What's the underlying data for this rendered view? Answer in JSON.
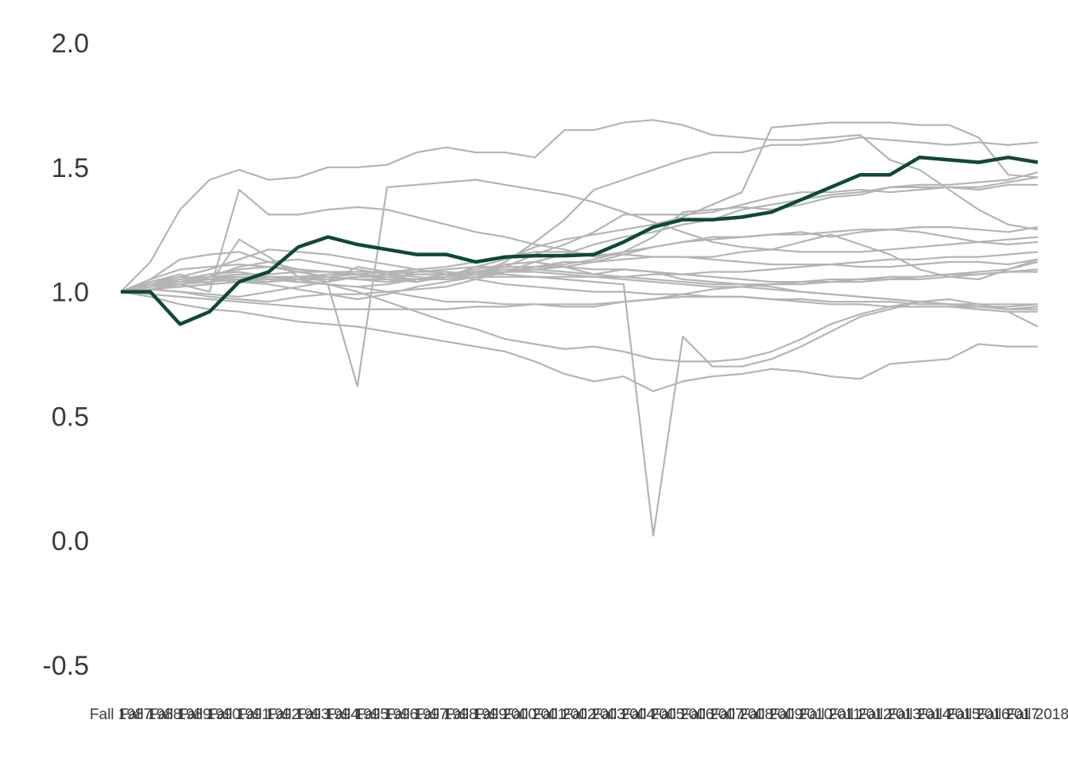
{
  "chart_data": {
    "type": "line",
    "title": "",
    "xlabel": "",
    "ylabel": "",
    "ylim": [
      -0.6,
      2.08
    ],
    "yticks": [
      "2.0",
      "1.5",
      "1.0",
      "0.5",
      "0.0",
      "-0.5"
    ],
    "ytick_values": [
      2.0,
      1.5,
      1.0,
      0.5,
      0.0,
      -0.5
    ],
    "grid": false,
    "legend": "none",
    "x": [
      "Fall 1987",
      "Fall 1988",
      "Fall 1989",
      "Fall 1990",
      "Fall 1991",
      "Fall 1992",
      "Fall 1993",
      "Fall 1994",
      "Fall 1995",
      "Fall 1996",
      "Fall 1997",
      "Fall 1998",
      "Fall 1999",
      "Fall 2000",
      "Fall 2001",
      "Fall 2002",
      "Fall 2003",
      "Fall 2004",
      "Fall 2005",
      "Fall 2006",
      "Fall 2007",
      "Fall 2008",
      "Fall 2009",
      "Fall 2010",
      "Fall 2011",
      "Fall 2012",
      "Fall 2013",
      "Fall 2014",
      "Fall 2015",
      "Fall 2016",
      "Fall 2017",
      "Fall 2018"
    ],
    "colors": {
      "background_series": "#b4b4b4",
      "highlight_series": "#0d4a33"
    },
    "highlight": {
      "values": [
        1.0,
        1.0,
        0.87,
        0.92,
        1.04,
        1.08,
        1.18,
        1.22,
        1.19,
        1.17,
        1.15,
        1.15,
        1.12,
        1.14,
        1.145,
        1.145,
        1.15,
        1.2,
        1.26,
        1.29,
        1.29,
        1.3,
        1.32,
        1.37,
        1.42,
        1.47,
        1.47,
        1.54,
        1.53,
        1.52,
        1.54,
        1.52
      ]
    },
    "series": [
      {
        "values": [
          1.0,
          1.12,
          1.33,
          1.45,
          1.49,
          1.45,
          1.46,
          1.5,
          1.5,
          1.51,
          1.56,
          1.58,
          1.56,
          1.56,
          1.54,
          1.65,
          1.65,
          1.68,
          1.69,
          1.67,
          1.63,
          1.62,
          1.61,
          1.61,
          1.62,
          1.63,
          1.53,
          1.49,
          1.41,
          1.33,
          1.27,
          1.25
        ]
      },
      {
        "values": [
          1.0,
          1.04,
          1.07,
          1.03,
          1.21,
          1.14,
          1.06,
          1.04,
          1.1,
          1.08,
          1.04,
          1.06,
          1.1,
          1.13,
          1.18,
          1.21,
          1.23,
          1.25,
          1.27,
          1.3,
          1.35,
          1.4,
          1.66,
          1.67,
          1.68,
          1.68,
          1.68,
          1.67,
          1.67,
          1.62,
          1.47,
          1.46
        ]
      },
      {
        "values": [
          1.0,
          1.02,
          1.03,
          1.0,
          1.41,
          1.31,
          1.31,
          1.33,
          1.34,
          1.33,
          1.3,
          1.27,
          1.24,
          1.22,
          1.19,
          1.17,
          1.14,
          1.16,
          1.22,
          1.32,
          1.33,
          1.34,
          1.33,
          1.35,
          1.38,
          1.39,
          1.42,
          1.43,
          1.43,
          1.44,
          1.45,
          1.48
        ]
      },
      {
        "values": [
          1.0,
          1.05,
          1.13,
          1.15,
          1.16,
          1.12,
          1.09,
          1.08,
          1.07,
          1.05,
          1.04,
          1.06,
          1.08,
          1.1,
          1.15,
          1.19,
          1.24,
          1.31,
          1.31,
          1.31,
          1.32,
          1.35,
          1.38,
          1.4,
          1.4,
          1.41,
          1.4,
          1.41,
          1.42,
          1.42,
          1.44,
          1.46
        ]
      },
      {
        "values": [
          1.0,
          1.02,
          1.04,
          1.06,
          1.1,
          1.12,
          1.13,
          1.11,
          1.09,
          1.07,
          1.06,
          1.05,
          1.07,
          1.12,
          1.2,
          1.29,
          1.41,
          1.45,
          1.49,
          1.53,
          1.56,
          1.56,
          1.59,
          1.59,
          1.6,
          1.62,
          1.61,
          1.6,
          1.59,
          1.6,
          1.59,
          1.6
        ]
      },
      {
        "values": [
          1.0,
          1.01,
          1.0,
          0.98,
          0.97,
          0.96,
          0.98,
          0.99,
          0.99,
          1.0,
          1.01,
          1.02,
          1.05,
          1.08,
          1.12,
          1.15,
          1.19,
          1.22,
          1.24,
          1.27,
          1.29,
          1.33,
          1.35,
          1.37,
          1.39,
          1.4,
          1.42,
          1.42,
          1.42,
          1.41,
          1.43,
          1.43
        ]
      },
      {
        "values": [
          1.0,
          1.03,
          1.05,
          1.06,
          1.07,
          1.07,
          1.08,
          1.08,
          1.07,
          1.06,
          1.05,
          1.06,
          1.07,
          1.08,
          1.09,
          1.1,
          1.12,
          1.15,
          1.18,
          1.2,
          1.22,
          1.22,
          1.23,
          1.23,
          1.24,
          1.25,
          1.25,
          1.26,
          1.26,
          1.25,
          1.24,
          1.26
        ]
      },
      {
        "values": [
          1.0,
          1.02,
          1.04,
          1.05,
          1.05,
          1.05,
          1.04,
          1.03,
          1.02,
          1.03,
          1.05,
          1.07,
          1.08,
          1.1,
          1.1,
          1.11,
          1.13,
          1.16,
          1.18,
          1.2,
          1.21,
          1.22,
          1.23,
          1.24,
          1.22,
          1.24,
          1.25,
          1.24,
          1.22,
          1.2,
          1.19,
          1.2
        ]
      },
      {
        "values": [
          1.0,
          1.04,
          1.06,
          1.05,
          1.04,
          1.03,
          1.01,
          0.99,
          0.97,
          0.99,
          1.02,
          1.04,
          1.06,
          1.08,
          1.1,
          1.12,
          1.12,
          1.13,
          1.14,
          1.14,
          1.14,
          1.16,
          1.17,
          1.2,
          1.23,
          1.19,
          1.15,
          1.09,
          1.06,
          1.05,
          1.09,
          1.13
        ]
      },
      {
        "values": [
          1.0,
          1.03,
          1.05,
          1.07,
          1.09,
          1.1,
          1.09,
          1.08,
          1.08,
          1.08,
          1.07,
          1.07,
          1.08,
          1.09,
          1.09,
          1.08,
          1.07,
          1.06,
          1.05,
          1.04,
          1.03,
          1.03,
          1.02,
          1.0,
          0.99,
          0.98,
          0.97,
          0.96,
          0.95,
          0.95,
          0.95,
          0.95
        ]
      },
      {
        "values": [
          1.0,
          1.01,
          1.02,
          1.03,
          1.04,
          1.04,
          1.05,
          1.05,
          1.06,
          1.06,
          1.07,
          1.07,
          1.08,
          1.08,
          1.08,
          1.07,
          1.06,
          1.05,
          1.04,
          1.03,
          1.02,
          1.02,
          1.01,
          1.0,
          0.99,
          0.98,
          0.97,
          0.96,
          0.95,
          0.94,
          0.93,
          0.94
        ]
      },
      {
        "values": [
          1.0,
          0.99,
          0.98,
          0.97,
          0.96,
          0.95,
          0.94,
          0.93,
          0.93,
          0.93,
          0.93,
          0.93,
          0.94,
          0.94,
          0.95,
          0.95,
          0.95,
          0.96,
          0.97,
          0.98,
          0.98,
          0.98,
          0.97,
          0.96,
          0.95,
          0.95,
          0.94,
          0.94,
          0.94,
          0.93,
          0.92,
          0.92
        ]
      },
      {
        "values": [
          1.0,
          0.98,
          0.95,
          0.93,
          0.92,
          0.9,
          0.88,
          0.87,
          0.86,
          0.84,
          0.82,
          0.8,
          0.78,
          0.76,
          0.72,
          0.67,
          0.64,
          0.66,
          0.6,
          0.64,
          0.66,
          0.67,
          0.69,
          0.68,
          0.66,
          0.65,
          0.71,
          0.72,
          0.73,
          0.79,
          0.78,
          0.78
        ]
      },
      {
        "values": [
          1.0,
          1.02,
          1.05,
          1.07,
          1.08,
          1.06,
          1.05,
          1.03,
          1.0,
          0.96,
          0.92,
          0.88,
          0.85,
          0.81,
          0.79,
          0.77,
          0.78,
          0.76,
          0.73,
          0.72,
          0.72,
          0.73,
          0.76,
          0.81,
          0.87,
          0.91,
          0.94,
          0.96,
          0.95,
          0.93,
          0.92,
          0.86
        ]
      },
      {
        "values": [
          1.0,
          1.01,
          1.0,
          0.99,
          0.98,
          1.0,
          1.02,
          1.04,
          1.06,
          1.07,
          1.08,
          1.09,
          1.1,
          1.1,
          1.1,
          1.1,
          1.09,
          1.09,
          1.08,
          1.07,
          1.06,
          1.05,
          1.04,
          1.04,
          1.05,
          1.05,
          1.06,
          1.06,
          1.07,
          1.07,
          1.08,
          1.08
        ]
      },
      {
        "values": [
          1.0,
          1.03,
          1.04,
          1.06,
          1.06,
          1.05,
          1.04,
          1.03,
          1.02,
          1.0,
          0.98,
          0.96,
          0.96,
          0.95,
          0.95,
          0.94,
          0.94,
          0.96,
          0.97,
          0.99,
          1.01,
          1.02,
          1.03,
          1.04,
          1.04,
          1.05,
          1.05,
          1.06,
          1.07,
          1.08,
          1.09,
          1.12
        ]
      },
      {
        "values": [
          1.0,
          1.01,
          1.02,
          1.03,
          1.04,
          1.05,
          1.05,
          1.06,
          1.07,
          1.08,
          1.09,
          1.1,
          1.12,
          1.14,
          1.16,
          1.16,
          1.15,
          1.15,
          1.14,
          1.14,
          1.13,
          1.12,
          1.11,
          1.11,
          1.11,
          1.1,
          1.1,
          1.11,
          1.12,
          1.12,
          1.11,
          1.13
        ]
      },
      {
        "values": [
          1.0,
          1.05,
          1.09,
          1.1,
          1.11,
          1.1,
          1.08,
          1.06,
          1.05,
          1.04,
          1.05,
          1.07,
          1.09,
          1.11,
          1.12,
          1.1,
          1.07,
          1.09,
          1.08,
          1.05,
          1.04,
          1.03,
          1.03,
          1.03,
          1.04,
          1.04,
          1.05,
          1.05,
          1.06,
          1.07,
          1.08,
          1.09
        ]
      },
      {
        "values": [
          1.0,
          1.03,
          1.06,
          1.09,
          1.13,
          1.17,
          1.16,
          1.15,
          1.13,
          1.11,
          1.09,
          1.07,
          1.05,
          1.03,
          1.02,
          1.01,
          1.0,
          1.0,
          0.99,
          0.99,
          0.98,
          0.98,
          0.97,
          0.97,
          0.96,
          0.96,
          0.96,
          0.95,
          0.95,
          0.94,
          0.94,
          0.95
        ]
      },
      {
        "values": [
          1.0,
          1.01,
          1.03,
          1.05,
          1.06,
          1.05,
          1.04,
          1.03,
          0.62,
          1.42,
          1.43,
          1.44,
          1.45,
          1.43,
          1.41,
          1.39,
          1.36,
          1.32,
          1.28,
          1.24,
          1.2,
          1.18,
          1.17,
          1.16,
          1.16,
          1.16,
          1.17,
          1.18,
          1.19,
          1.2,
          1.21,
          1.22
        ]
      },
      {
        "values": [
          1.0,
          1.02,
          1.04,
          1.05,
          1.06,
          1.06,
          1.06,
          1.07,
          1.07,
          1.08,
          1.08,
          1.08,
          1.07,
          1.07,
          1.06,
          1.05,
          1.04,
          1.03,
          0.02,
          0.82,
          0.7,
          0.7,
          0.73,
          0.78,
          0.84,
          0.9,
          0.93,
          0.96,
          0.97,
          0.95,
          0.93,
          0.93
        ]
      },
      {
        "values": [
          1.0,
          1.02,
          1.03,
          1.04,
          1.05,
          1.06,
          1.06,
          1.06,
          1.05,
          1.05,
          1.05,
          1.05,
          1.06,
          1.06,
          1.06,
          1.06,
          1.06,
          1.06,
          1.07,
          1.07,
          1.08,
          1.08,
          1.09,
          1.1,
          1.11,
          1.12,
          1.13,
          1.13,
          1.14,
          1.14,
          1.15,
          1.16
        ]
      }
    ]
  }
}
